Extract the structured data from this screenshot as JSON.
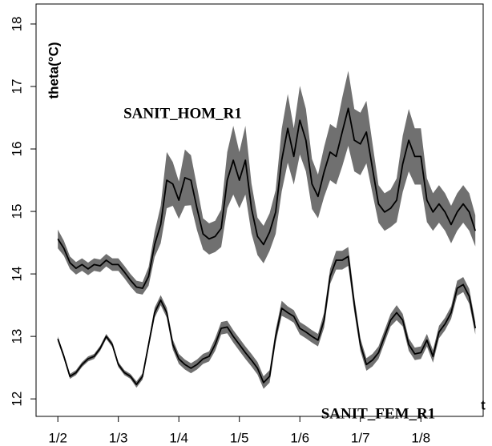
{
  "chart_data": {
    "type": "line",
    "ylabel": "theta(°C)",
    "xlabel": "t",
    "x": [
      2.0,
      2.1,
      2.2,
      2.3,
      2.4,
      2.5,
      2.6,
      2.7,
      2.8,
      2.9,
      3.0,
      3.1,
      3.2,
      3.3,
      3.4,
      3.5,
      3.6,
      3.7,
      3.8,
      3.9,
      4.0,
      4.1,
      4.2,
      4.3,
      4.4,
      4.5,
      4.6,
      4.7,
      4.8,
      4.9,
      5.0,
      5.1,
      5.2,
      5.3,
      5.4,
      5.5,
      5.6,
      5.7,
      5.8,
      5.9,
      6.0,
      6.1,
      6.2,
      6.3,
      6.4,
      6.5,
      6.6,
      6.7,
      6.8,
      6.9,
      7.0,
      7.1,
      7.2,
      7.3,
      7.4,
      7.5,
      7.6,
      7.7,
      7.8,
      7.9,
      8.0,
      8.1,
      8.2,
      8.3,
      8.4,
      8.5,
      8.6,
      8.7,
      8.8,
      8.9
    ],
    "series": [
      {
        "name": "SANIT_HOM_R1",
        "color": "#000000",
        "band_color": "#707070",
        "values": [
          14.56,
          14.41,
          14.18,
          14.09,
          14.15,
          14.08,
          14.15,
          14.13,
          14.22,
          14.15,
          14.15,
          14.03,
          13.9,
          13.79,
          13.77,
          13.96,
          14.47,
          14.79,
          15.5,
          15.44,
          15.18,
          15.54,
          15.5,
          15.05,
          14.64,
          14.56,
          14.6,
          14.73,
          15.5,
          15.82,
          15.5,
          15.82,
          15.05,
          14.6,
          14.47,
          14.67,
          14.99,
          15.82,
          16.33,
          15.88,
          16.46,
          16.14,
          15.44,
          15.24,
          15.63,
          15.95,
          15.88,
          16.27,
          16.65,
          16.14,
          16.08,
          16.27,
          15.69,
          15.12,
          14.99,
          15.05,
          15.18,
          15.76,
          16.14,
          15.88,
          15.88,
          15.18,
          14.99,
          15.12,
          14.99,
          14.79,
          14.99,
          15.12,
          14.99,
          14.69
        ],
        "errors": [
          0.15,
          0.12,
          0.1,
          0.1,
          0.1,
          0.1,
          0.1,
          0.1,
          0.1,
          0.1,
          0.1,
          0.1,
          0.1,
          0.1,
          0.1,
          0.15,
          0.2,
          0.3,
          0.45,
          0.35,
          0.3,
          0.45,
          0.4,
          0.35,
          0.25,
          0.25,
          0.25,
          0.3,
          0.45,
          0.55,
          0.45,
          0.55,
          0.4,
          0.3,
          0.3,
          0.3,
          0.35,
          0.5,
          0.55,
          0.45,
          0.55,
          0.5,
          0.4,
          0.35,
          0.4,
          0.45,
          0.45,
          0.55,
          0.6,
          0.5,
          0.5,
          0.5,
          0.4,
          0.3,
          0.3,
          0.3,
          0.35,
          0.45,
          0.5,
          0.45,
          0.45,
          0.35,
          0.3,
          0.3,
          0.3,
          0.3,
          0.3,
          0.3,
          0.3,
          0.25
        ]
      },
      {
        "name": "SANIT_FEM_R1",
        "color": "#000000",
        "band_color": "#707070",
        "values": [
          12.96,
          12.68,
          12.36,
          12.42,
          12.55,
          12.64,
          12.68,
          12.81,
          13.0,
          12.87,
          12.55,
          12.42,
          12.36,
          12.23,
          12.36,
          12.87,
          13.38,
          13.58,
          13.38,
          12.87,
          12.64,
          12.55,
          12.49,
          12.55,
          12.64,
          12.68,
          12.87,
          13.13,
          13.15,
          13.0,
          12.87,
          12.74,
          12.62,
          12.49,
          12.26,
          12.36,
          13.0,
          13.45,
          13.38,
          13.32,
          13.13,
          13.07,
          13.0,
          12.94,
          13.26,
          13.96,
          14.22,
          14.22,
          14.28,
          13.51,
          12.87,
          12.55,
          12.62,
          12.74,
          13.0,
          13.26,
          13.38,
          13.26,
          12.87,
          12.72,
          12.74,
          12.94,
          12.68,
          13.07,
          13.2,
          13.38,
          13.77,
          13.83,
          13.64,
          13.13
        ],
        "errors": [
          0.04,
          0.04,
          0.04,
          0.04,
          0.04,
          0.04,
          0.04,
          0.04,
          0.04,
          0.04,
          0.04,
          0.04,
          0.04,
          0.05,
          0.05,
          0.06,
          0.08,
          0.08,
          0.08,
          0.08,
          0.08,
          0.08,
          0.08,
          0.08,
          0.08,
          0.08,
          0.1,
          0.1,
          0.1,
          0.1,
          0.1,
          0.1,
          0.1,
          0.1,
          0.1,
          0.1,
          0.1,
          0.12,
          0.1,
          0.1,
          0.1,
          0.1,
          0.1,
          0.1,
          0.12,
          0.12,
          0.15,
          0.15,
          0.15,
          0.12,
          0.1,
          0.1,
          0.1,
          0.1,
          0.1,
          0.1,
          0.12,
          0.1,
          0.1,
          0.1,
          0.1,
          0.1,
          0.1,
          0.1,
          0.1,
          0.1,
          0.12,
          0.12,
          0.12,
          0.1
        ]
      }
    ],
    "xlim": [
      1.64,
      9.03
    ],
    "ylim": [
      11.72,
      18.32
    ],
    "xticks": [
      {
        "value": 2,
        "label": "1/2"
      },
      {
        "value": 3,
        "label": "1/3"
      },
      {
        "value": 4,
        "label": "1/4"
      },
      {
        "value": 5,
        "label": "1/5"
      },
      {
        "value": 6,
        "label": "1/6"
      },
      {
        "value": 7,
        "label": "1/7"
      },
      {
        "value": 8,
        "label": "1/8"
      }
    ],
    "yticks": [
      12,
      13,
      14,
      15,
      16,
      17,
      18
    ],
    "grid": false
  }
}
